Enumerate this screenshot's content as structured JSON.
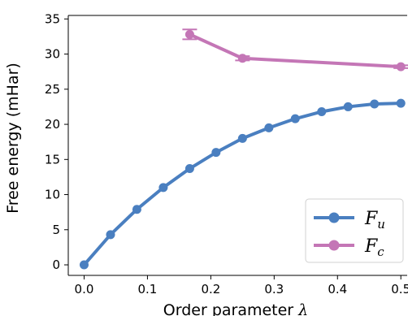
{
  "chart_data": {
    "type": "line",
    "title": "",
    "xlabel": "Order parameter",
    "xlabel_symbol": "λ",
    "ylabel": "Free energy (mHar)",
    "xlim": [
      -0.025,
      0.51
    ],
    "ylim": [
      -1.5,
      35.5
    ],
    "xticks": [
      "0.0",
      "0.1",
      "0.2",
      "0.3",
      "0.4",
      "0.5"
    ],
    "xtick_values": [
      0.0,
      0.1,
      0.2,
      0.3,
      0.4,
      0.5
    ],
    "yticks": [
      "0",
      "5",
      "10",
      "15",
      "20",
      "25",
      "30",
      "35"
    ],
    "ytick_values": [
      0,
      5,
      10,
      15,
      20,
      25,
      30,
      35
    ],
    "grid": false,
    "legend_position": "bottom-right",
    "series": [
      {
        "name": "F",
        "name_subscript": "u",
        "color": "#4a7fc0",
        "x": [
          0.0,
          0.0417,
          0.0833,
          0.125,
          0.1667,
          0.2083,
          0.25,
          0.2917,
          0.3333,
          0.375,
          0.4167,
          0.4583,
          0.5
        ],
        "y": [
          0.0,
          4.3,
          7.9,
          11.0,
          13.7,
          16.0,
          18.0,
          19.5,
          20.8,
          21.8,
          22.5,
          22.9,
          23.0
        ],
        "error": []
      },
      {
        "name": "F",
        "name_subscript": "c",
        "color": "#c476b6",
        "x": [
          0.1667,
          0.25,
          0.5
        ],
        "y": [
          32.8,
          29.4,
          28.2
        ],
        "error": [
          0.7,
          0.3,
          0.2
        ]
      }
    ]
  }
}
